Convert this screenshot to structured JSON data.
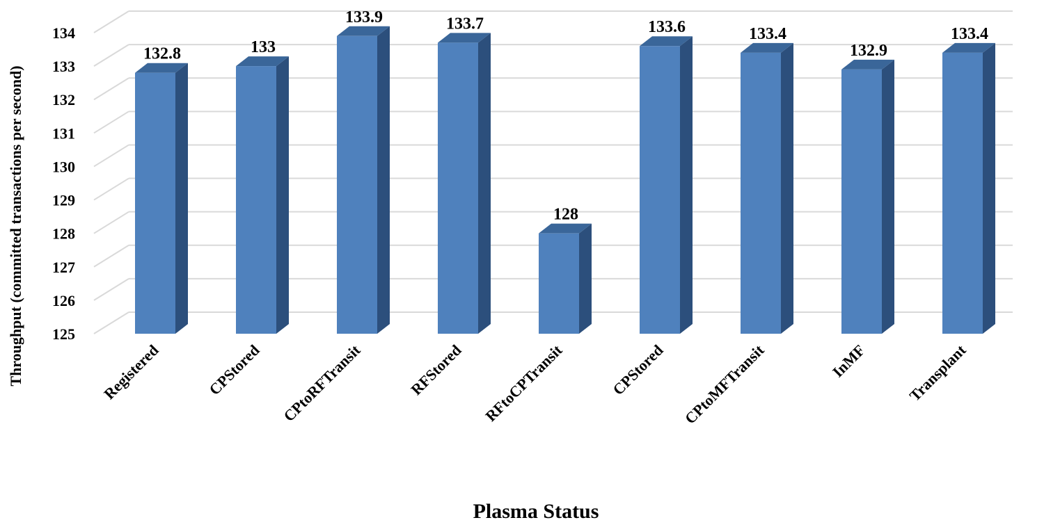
{
  "chart_data": {
    "type": "bar",
    "style": "3d-column",
    "title": "",
    "xlabel": "Plasma Status",
    "ylabel": "Throughput (committed transactions per second)",
    "categories": [
      "Registered",
      "CPStored",
      "CPtoRFTransit",
      "RFStored",
      "RFtoCPTransit",
      "CPStored",
      "CPtoMFTransit",
      "InMF",
      "Transplant"
    ],
    "values": [
      132.8,
      133,
      133.9,
      133.7,
      128,
      133.6,
      133.4,
      132.9,
      133.4
    ],
    "data_labels": [
      "132.8",
      "133",
      "133.9",
      "133.7",
      "128",
      "133.6",
      "133.4",
      "132.9",
      "133.4"
    ],
    "ylim": [
      125,
      134
    ],
    "yticks": [
      125,
      126,
      127,
      128,
      129,
      130,
      131,
      132,
      133,
      134
    ],
    "grid": true,
    "legend": "none",
    "colors": {
      "bar_front": "#4f81bd",
      "bar_side": "#2c4f7c",
      "bar_top": "#3a6699",
      "grid": "#d9d9d9",
      "text": "#000000"
    }
  }
}
